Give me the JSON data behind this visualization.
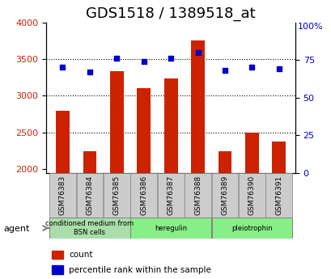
{
  "title": "GDS1518 / 1389518_at",
  "samples": [
    "GSM76383",
    "GSM76384",
    "GSM76385",
    "GSM76386",
    "GSM76387",
    "GSM76388",
    "GSM76389",
    "GSM76390",
    "GSM76391"
  ],
  "counts": [
    2800,
    2250,
    3340,
    3100,
    3240,
    3750,
    2250,
    2500,
    2380
  ],
  "percentiles": [
    70,
    67,
    76,
    74,
    76,
    80,
    68,
    70,
    69
  ],
  "ylim_left": [
    1950,
    4000
  ],
  "ylim_right": [
    0,
    100
  ],
  "yticks_left": [
    2000,
    2500,
    3000,
    3500,
    4000
  ],
  "yticks_right": [
    0,
    25,
    50,
    75,
    100
  ],
  "bar_color": "#cc2200",
  "dot_color": "#0000cc",
  "background_plot": "#ffffff",
  "background_xtick": "#cccccc",
  "grid_color": "#000000",
  "agent_groups": [
    {
      "label": "conditioned medium from\nBSN cells",
      "start": 0,
      "end": 3,
      "color": "#99dd99"
    },
    {
      "label": "heregulin",
      "start": 3,
      "end": 6,
      "color": "#66ee66"
    },
    {
      "label": "pleiotrophin",
      "start": 6,
      "end": 9,
      "color": "#66ee66"
    }
  ],
  "legend_count_label": "count",
  "legend_pct_label": "percentile rank within the sample",
  "agent_label": "agent",
  "title_fontsize": 13,
  "tick_fontsize": 8,
  "label_fontsize": 9
}
